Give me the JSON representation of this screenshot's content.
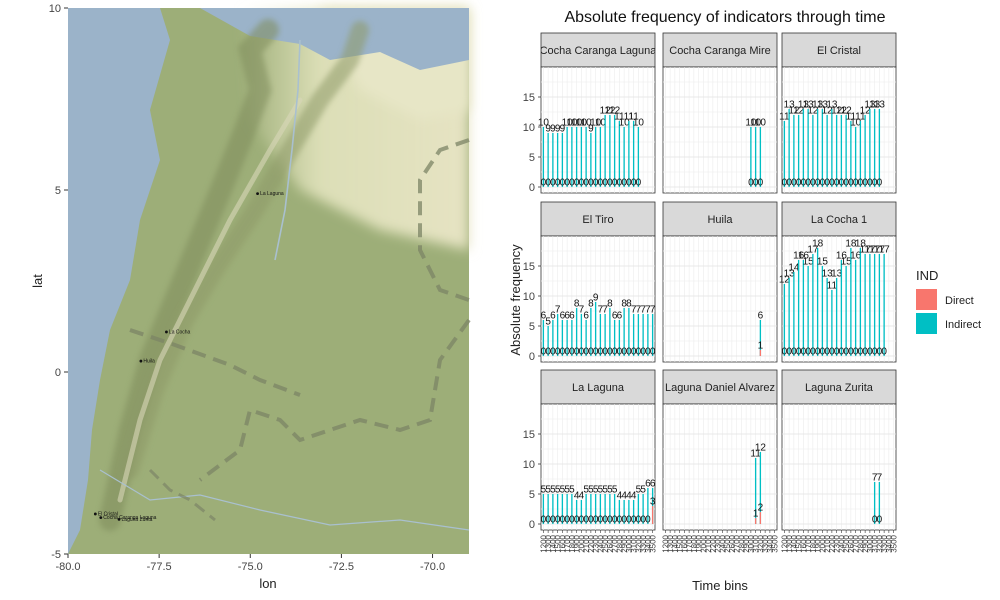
{
  "colors": {
    "direct": "#F8766D",
    "indirect": "#00BFC4",
    "strip_fill": "#D9D9D9",
    "water": "#9BB3C9",
    "land": "#9DAE78",
    "highland": "#E3E4BE",
    "mountain": "#7F8C5C",
    "border": "#7C8466"
  },
  "map": {
    "xlabel": "lon",
    "ylabel": "lat",
    "x_ticks": [
      "-80.0",
      "-77.5",
      "-75.0",
      "-72.5",
      "-70.0"
    ],
    "y_ticks": [
      "10",
      "5",
      "0",
      "-5"
    ],
    "xlim": [
      -80.0,
      -69.0
    ],
    "ylim": [
      -5.0,
      10.0
    ],
    "sites": [
      {
        "name": "La Laguna",
        "lon": -74.8,
        "lat": 4.9
      },
      {
        "name": "La Cocha",
        "lon": -77.3,
        "lat": 1.1
      },
      {
        "name": "Huila",
        "lon": -78.0,
        "lat": 0.3
      },
      {
        "name": "El Cristal",
        "lon": -79.25,
        "lat": -3.9
      },
      {
        "name": "Cocha Caranga Laguna",
        "lon": -79.1,
        "lat": -4.0
      },
      {
        "name": "Laguna Zurita",
        "lon": -78.6,
        "lat": -4.05
      }
    ]
  },
  "chart_data": {
    "type": "bar",
    "title": "Absolute frequency of indicators through time",
    "xlabel": "Time bins",
    "ylabel": "Absolute frequency",
    "y_ticks": [
      0,
      5,
      10,
      15
    ],
    "ylim": [
      -1,
      20
    ],
    "legend": {
      "title": "IND",
      "position": "right",
      "entries": [
        "Direct",
        "Indirect"
      ]
    },
    "panels": [
      {
        "strip": "Cocha Caranga Laguna",
        "start": 0,
        "indirect": [
          10,
          9,
          9,
          9,
          9,
          10,
          10,
          10,
          10,
          10,
          9,
          10,
          10,
          12,
          12,
          12,
          11,
          10,
          11,
          11,
          10
        ],
        "direct": [
          0,
          0,
          0,
          0,
          0,
          0,
          0,
          0,
          0,
          0,
          0,
          0,
          0,
          0,
          0,
          0,
          0,
          0,
          0,
          0,
          0
        ]
      },
      {
        "strip": "Cocha Caranga Mire",
        "start": 18,
        "indirect": [
          10,
          10,
          10
        ],
        "direct": [
          0,
          0,
          0
        ]
      },
      {
        "strip": "El Cristal",
        "start": 0,
        "indirect": [
          11,
          13,
          12,
          12,
          13,
          13,
          12,
          13,
          13,
          12,
          13,
          12,
          12,
          12,
          11,
          10,
          11,
          12,
          13,
          13,
          13
        ],
        "direct": [
          0,
          0,
          0,
          0,
          0,
          0,
          0,
          0,
          0,
          0,
          0,
          0,
          0,
          0,
          0,
          0,
          0,
          0,
          0,
          0,
          0
        ]
      },
      {
        "strip": "El Tiro",
        "start": 0,
        "indirect": [
          6,
          5,
          6,
          7,
          6,
          6,
          6,
          8,
          7,
          6,
          8,
          9,
          7,
          7,
          8,
          6,
          6,
          8,
          8,
          7,
          7,
          7,
          7,
          7
        ],
        "direct": [
          0,
          0,
          0,
          0,
          0,
          0,
          0,
          0,
          0,
          0,
          0,
          0,
          0,
          0,
          0,
          0,
          0,
          0,
          0,
          0,
          0,
          0,
          0,
          0
        ]
      },
      {
        "strip": "Huila",
        "start": 20,
        "indirect": [
          6
        ],
        "direct": [
          1
        ]
      },
      {
        "strip": "La Cocha 1",
        "start": 0,
        "indirect": [
          12,
          13,
          14,
          16,
          16,
          15,
          17,
          18,
          15,
          13,
          11,
          13,
          16,
          15,
          18,
          16,
          18,
          17,
          17,
          17,
          17,
          17
        ],
        "direct": [
          0,
          0,
          0,
          0,
          0,
          0,
          0,
          0,
          0,
          0,
          0,
          0,
          0,
          0,
          0,
          0,
          0,
          0,
          0,
          0,
          0,
          0
        ]
      },
      {
        "strip": "La Laguna",
        "start": 0,
        "indirect": [
          5,
          5,
          5,
          5,
          5,
          5,
          5,
          4,
          4,
          5,
          5,
          5,
          5,
          5,
          5,
          5,
          4,
          4,
          4,
          4,
          5,
          5,
          6,
          6
        ],
        "direct": [
          0,
          0,
          0,
          0,
          0,
          0,
          0,
          0,
          0,
          0,
          0,
          0,
          0,
          0,
          0,
          0,
          0,
          0,
          0,
          0,
          0,
          0,
          0,
          3
        ]
      },
      {
        "strip": "Laguna Daniel Alvarez",
        "start": 19,
        "indirect": [
          11,
          12
        ],
        "direct": [
          1,
          2
        ]
      },
      {
        "strip": "Laguna Zurita",
        "start": 19,
        "indirect": [
          7,
          7
        ],
        "direct": [
          0,
          0
        ]
      }
    ],
    "x_tick_labels": [
      "1200",
      "1300",
      "1400",
      "1500",
      "1600",
      "1700",
      "1800",
      "1900",
      "2000",
      "2100",
      "2200",
      "2300",
      "2400",
      "2500",
      "2600",
      "2700",
      "2800",
      "2900",
      "3000",
      "3100",
      "3200",
      "3300",
      "3400",
      "3500"
    ]
  }
}
